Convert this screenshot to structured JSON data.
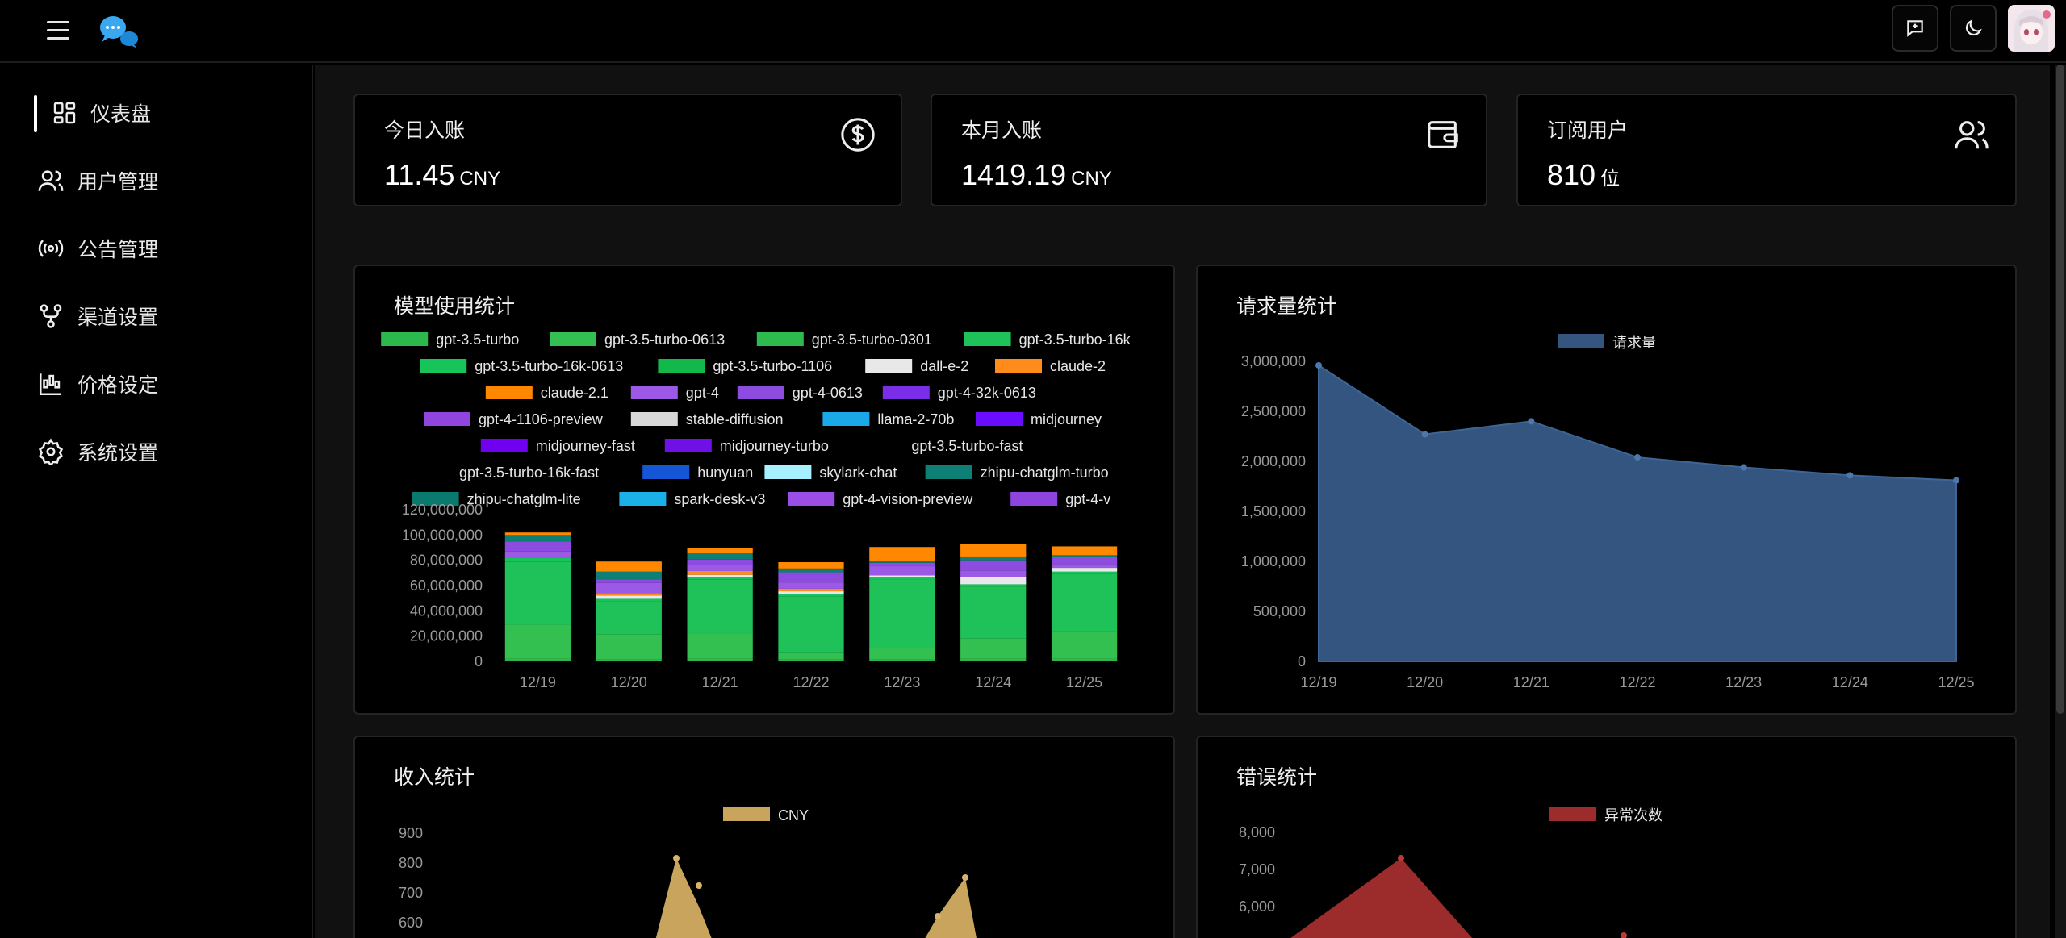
{
  "sidebar": {
    "items": [
      {
        "label": "仪表盘",
        "icon": "dashboard-icon",
        "active": true
      },
      {
        "label": "用户管理",
        "icon": "users-icon"
      },
      {
        "label": "公告管理",
        "icon": "broadcast-icon"
      },
      {
        "label": "渠道设置",
        "icon": "channel-icon"
      },
      {
        "label": "价格设定",
        "icon": "price-icon"
      },
      {
        "label": "系统设置",
        "icon": "gear-icon"
      }
    ]
  },
  "stats": {
    "today": {
      "title": "今日入账",
      "value": "11.45",
      "unit": "CNY",
      "icon": "dollar-icon"
    },
    "month": {
      "title": "本月入账",
      "value": "1419.19",
      "unit": "CNY",
      "icon": "wallet-icon"
    },
    "subs": {
      "title": "订阅用户",
      "value": "810",
      "unit": "位",
      "icon": "users-icon"
    }
  },
  "panels": {
    "model_usage": "模型使用统计",
    "requests": "请求量统计",
    "income": "收入统计",
    "errors": "错误统计"
  },
  "chart_data": [
    {
      "type": "bar",
      "stacked": true,
      "title": "模型使用统计",
      "categories": [
        "12/19",
        "12/20",
        "12/21",
        "12/22",
        "12/23",
        "12/24",
        "12/25"
      ],
      "ylim": [
        0,
        120000000
      ],
      "yticks": [
        "0",
        "20,000,000",
        "40,000,000",
        "60,000,000",
        "80,000,000",
        "100,000,000",
        "120,000,000"
      ],
      "legend_position": "top",
      "legend": [
        {
          "name": "gpt-3.5-turbo",
          "color": "#2db84d"
        },
        {
          "name": "gpt-3.5-turbo-0613",
          "color": "#33c050"
        },
        {
          "name": "gpt-3.5-turbo-0301",
          "color": "#2dbb4e"
        },
        {
          "name": "gpt-3.5-turbo-16k",
          "color": "#1ec258"
        },
        {
          "name": "gpt-3.5-turbo-16k-0613",
          "color": "#16c45a"
        },
        {
          "name": "gpt-3.5-turbo-1106",
          "color": "#12b84a"
        },
        {
          "name": "dall-e-2",
          "color": "#e8e8e8"
        },
        {
          "name": "claude-2",
          "color": "#ff8c1a"
        },
        {
          "name": "claude-2.1",
          "color": "#ff8800"
        },
        {
          "name": "gpt-4",
          "color": "#9b59e6"
        },
        {
          "name": "gpt-4-0613",
          "color": "#8e4be0"
        },
        {
          "name": "gpt-4-32k-0613",
          "color": "#7a2ee8"
        },
        {
          "name": "gpt-4-1106-preview",
          "color": "#8f45de"
        },
        {
          "name": "stable-diffusion",
          "color": "#d8d8d8"
        },
        {
          "name": "llama-2-70b",
          "color": "#1aa8e8"
        },
        {
          "name": "midjourney",
          "color": "#6a0dff"
        },
        {
          "name": "midjourney-fast",
          "color": "#7000f0"
        },
        {
          "name": "midjourney-turbo",
          "color": "#6f10e6"
        },
        {
          "name": "gpt-3.5-turbo-fast",
          "color": "#000000"
        },
        {
          "name": "gpt-3.5-turbo-16k-fast",
          "color": "#000000"
        },
        {
          "name": "hunyuan",
          "color": "#1456d6"
        },
        {
          "name": "skylark-chat",
          "color": "#a7f0ff"
        },
        {
          "name": "zhipu-chatglm-turbo",
          "color": "#0e7f74"
        },
        {
          "name": "zhipu-chatglm-lite",
          "color": "#0b7a6e"
        },
        {
          "name": "spark-desk-v3",
          "color": "#1ab0e8"
        },
        {
          "name": "gpt-4-vision-preview",
          "color": "#9a4ee6"
        },
        {
          "name": "gpt-4-v",
          "color": "#8e45e0"
        }
      ],
      "series": [
        {
          "name": "gpt-3.5-turbo",
          "values": [
            2000000,
            1500000,
            2000000,
            1500000,
            1500000,
            2000000,
            2000000
          ]
        },
        {
          "name": "gpt-3.5-turbo-0613",
          "values": [
            27000000,
            20000000,
            20000000,
            5000000,
            9000000,
            16000000,
            22000000
          ]
        },
        {
          "name": "gpt-3.5-turbo-16k",
          "values": [
            50000000,
            26000000,
            43000000,
            45000000,
            54000000,
            41000000,
            45000000
          ]
        },
        {
          "name": "gpt-3.5-turbo-16k-0613",
          "values": [
            3000000,
            2000000,
            2000000,
            2000000,
            2000000,
            2000000,
            2000000
          ]
        },
        {
          "name": "dall-e-2",
          "values": [
            0,
            2500000,
            1500000,
            2000000,
            1500000,
            6000000,
            3000000
          ]
        },
        {
          "name": "claude-2",
          "values": [
            0,
            2000000,
            3000000,
            2000000,
            0,
            0,
            0
          ]
        },
        {
          "name": "gpt-4",
          "values": [
            5000000,
            8000000,
            5000000,
            5000000,
            7000000,
            5000000,
            3000000
          ]
        },
        {
          "name": "gpt-4-0613",
          "values": [
            8000000,
            3000000,
            4000000,
            8000000,
            3000000,
            8000000,
            6000000
          ]
        },
        {
          "name": "zhipu-chatglm-turbo",
          "values": [
            5000000,
            6000000,
            5000000,
            3000000,
            1500000,
            3000000,
            1000000
          ]
        },
        {
          "name": "claude-2.1",
          "values": [
            2000000,
            8000000,
            4000000,
            5000000,
            11000000,
            10000000,
            7000000
          ]
        }
      ]
    },
    {
      "type": "area",
      "title": "请求量统计",
      "legend_position": "top",
      "series": [
        {
          "name": "请求量",
          "color": "#34557f"
        }
      ],
      "x": [
        "12/19",
        "12/20",
        "12/21",
        "12/22",
        "12/23",
        "12/24",
        "12/25"
      ],
      "values": [
        2960000,
        2270000,
        2400000,
        2040000,
        1940000,
        1860000,
        1810000
      ],
      "ylim": [
        0,
        3000000
      ],
      "yticks": [
        "0",
        "500,000",
        "1,000,000",
        "1,500,000",
        "2,000,000",
        "2,500,000",
        "3,000,000"
      ]
    },
    {
      "type": "area",
      "title": "收入统计",
      "legend_position": "top",
      "series": [
        {
          "name": "CNY",
          "color": "#c9a45c"
        }
      ],
      "yticks": [
        "600",
        "700",
        "800",
        "900"
      ]
    },
    {
      "type": "area",
      "title": "错误统计",
      "legend_position": "top",
      "series": [
        {
          "name": "异常次数",
          "color": "#9c2b2b"
        }
      ],
      "yticks": [
        "6,000",
        "7,000",
        "8,000"
      ]
    }
  ]
}
